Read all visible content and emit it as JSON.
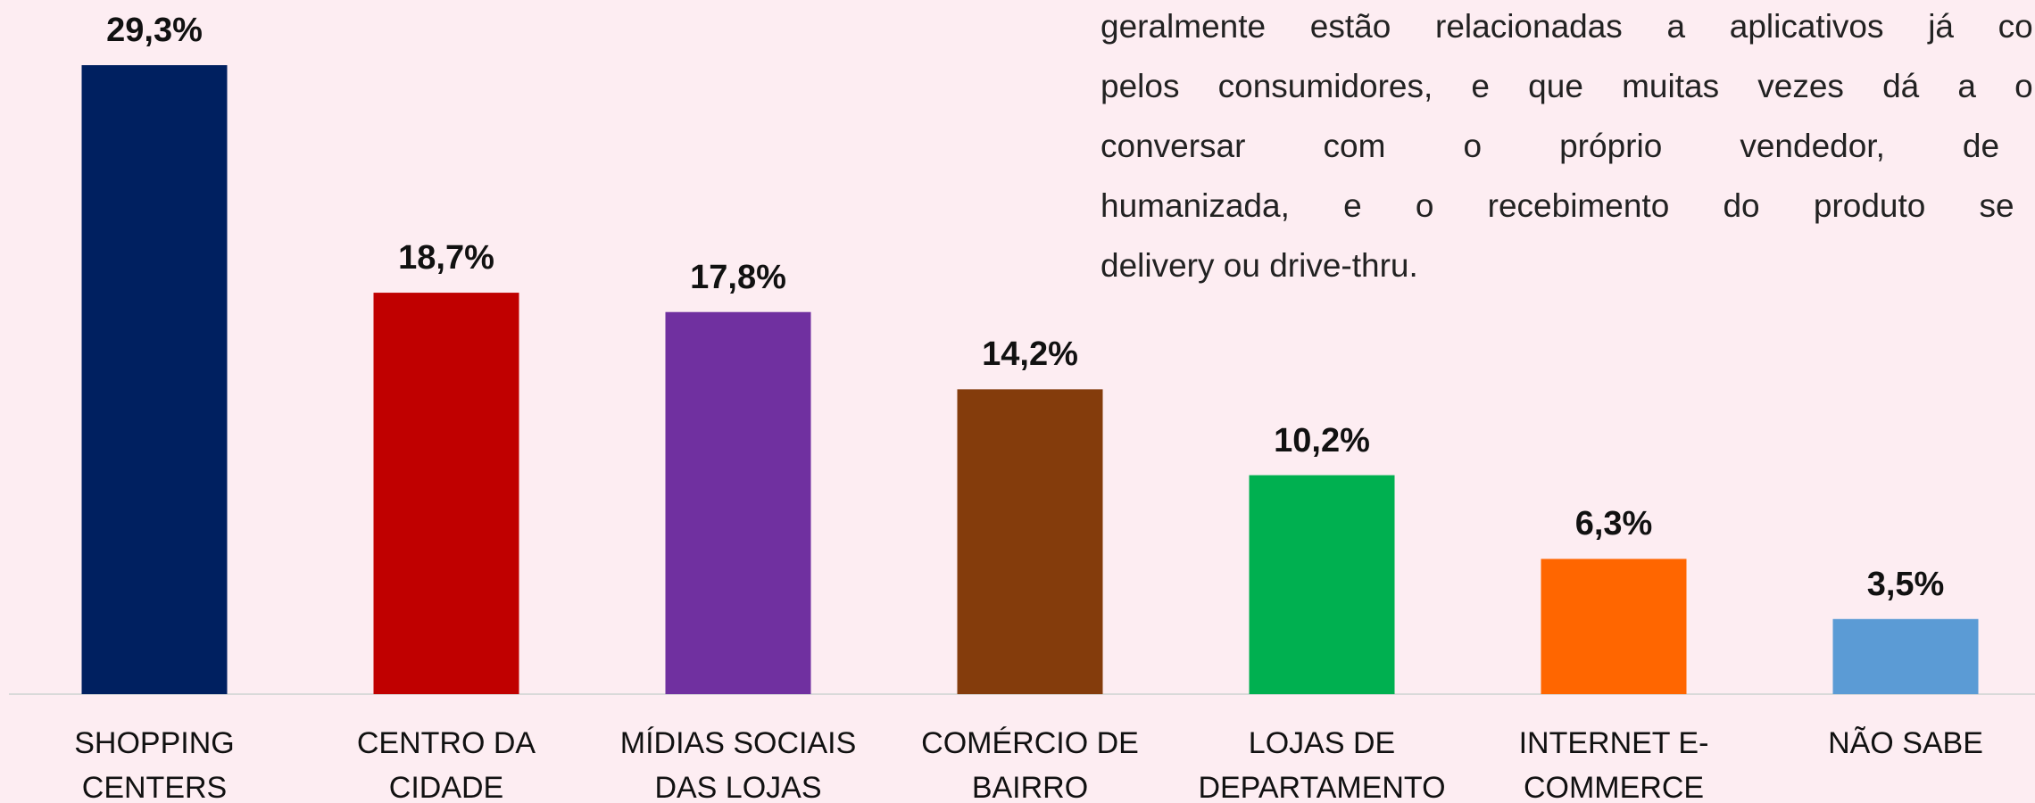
{
  "chart_data": {
    "type": "bar",
    "categories": [
      [
        "SHOPPING",
        "CENTERS"
      ],
      [
        "CENTRO DA",
        "CIDADE"
      ],
      [
        "MÍDIAS SOCIAIS",
        "DAS LOJAS"
      ],
      [
        "COMÉRCIO DE",
        "BAIRRO"
      ],
      [
        "LOJAS DE",
        "DEPARTAMENTO"
      ],
      [
        "INTERNET E-",
        "COMMERCE"
      ],
      [
        "NÃO SABE"
      ]
    ],
    "values": [
      29.3,
      18.7,
      17.8,
      14.2,
      10.2,
      6.3,
      3.5
    ],
    "value_labels": [
      "29,3%",
      "18,7%",
      "17,8%",
      "14,2%",
      "10,2%",
      "6,3%",
      "3,5%"
    ],
    "colors": [
      "#002060",
      "#c00000",
      "#7030a0",
      "#843c0c",
      "#00b050",
      "#ff6600",
      "#5b9bd5"
    ]
  },
  "paragraph": [
    "geralmente estão relacionadas a aplicativos já conhec",
    "pelos consumidores, e que muitas vezes dá a opção",
    "conversar com o próprio vendedor, de fo",
    "humanizada, e o recebimento do produto se dá",
    "delivery ou drive-thru."
  ]
}
